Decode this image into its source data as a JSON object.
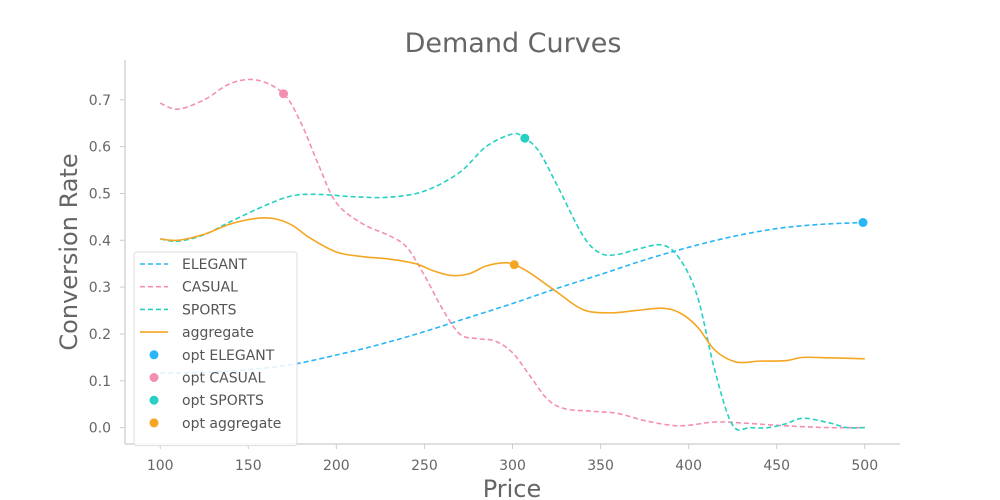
{
  "chart_data": {
    "type": "line",
    "title": "Demand Curves",
    "xlabel": "Price",
    "ylabel": "Conversion Rate",
    "xlim": [
      80,
      520
    ],
    "ylim": [
      -0.035,
      0.785
    ],
    "xticks": [
      100,
      150,
      200,
      250,
      300,
      350,
      400,
      450,
      500
    ],
    "yticks": [
      0.0,
      0.1,
      0.2,
      0.3,
      0.4,
      0.5,
      0.6,
      0.7
    ],
    "xtick_labels": [
      "100",
      "150",
      "200",
      "250",
      "300",
      "350",
      "400",
      "450",
      "500"
    ],
    "ytick_labels": [
      "0.0",
      "0.1",
      "0.2",
      "0.3",
      "0.4",
      "0.5",
      "0.6",
      "0.7"
    ],
    "grid": false,
    "legend": "lower-left",
    "series": [
      {
        "name": "ELEGANT",
        "color": "#29b6f6",
        "style": "dashed",
        "x": [
          100,
          125,
          150,
          175,
          200,
          225,
          250,
          275,
          300,
          325,
          350,
          375,
          400,
          425,
          450,
          475,
          500
        ],
        "y": [
          0.116,
          0.118,
          0.124,
          0.135,
          0.155,
          0.178,
          0.205,
          0.235,
          0.265,
          0.297,
          0.327,
          0.358,
          0.385,
          0.408,
          0.425,
          0.434,
          0.438
        ]
      },
      {
        "name": "CASUAL",
        "color": "#f48fb1",
        "style": "dashed",
        "x": [
          100,
          110,
          125,
          140,
          155,
          170,
          180,
          190,
          200,
          215,
          230,
          240,
          250,
          260,
          270,
          280,
          290,
          300,
          310,
          320,
          330,
          345,
          360,
          375,
          390,
          400,
          415,
          430,
          450,
          465,
          480,
          500
        ],
        "y": [
          0.693,
          0.68,
          0.7,
          0.735,
          0.742,
          0.713,
          0.65,
          0.56,
          0.48,
          0.435,
          0.41,
          0.385,
          0.325,
          0.255,
          0.2,
          0.19,
          0.185,
          0.16,
          0.11,
          0.06,
          0.04,
          0.035,
          0.03,
          0.015,
          0.005,
          0.005,
          0.012,
          0.01,
          0.005,
          0.002,
          0.0,
          0.0
        ]
      },
      {
        "name": "SPORTS",
        "color": "#26d0c2",
        "style": "dashed",
        "x": [
          100,
          110,
          125,
          140,
          160,
          175,
          190,
          210,
          230,
          250,
          270,
          285,
          300,
          307,
          315,
          325,
          340,
          350,
          360,
          370,
          385,
          395,
          405,
          415,
          425,
          435,
          445,
          455,
          465,
          480,
          490,
          500
        ],
        "y": [
          0.403,
          0.398,
          0.412,
          0.44,
          0.475,
          0.495,
          0.498,
          0.493,
          0.492,
          0.505,
          0.545,
          0.6,
          0.627,
          0.618,
          0.59,
          0.52,
          0.41,
          0.372,
          0.37,
          0.38,
          0.39,
          0.36,
          0.28,
          0.12,
          0.005,
          0.0,
          0.0,
          0.008,
          0.02,
          0.01,
          0.0,
          0.0
        ]
      },
      {
        "name": "aggregate",
        "color": "#f5a623",
        "style": "solid",
        "x": [
          100,
          110,
          125,
          140,
          155,
          165,
          175,
          185,
          200,
          215,
          230,
          245,
          255,
          265,
          275,
          285,
          295,
          301,
          310,
          325,
          340,
          355,
          370,
          385,
          395,
          405,
          415,
          427,
          440,
          455,
          465,
          480,
          500
        ],
        "y": [
          0.403,
          0.4,
          0.413,
          0.435,
          0.447,
          0.446,
          0.432,
          0.405,
          0.375,
          0.365,
          0.36,
          0.35,
          0.335,
          0.325,
          0.328,
          0.345,
          0.352,
          0.348,
          0.33,
          0.29,
          0.252,
          0.245,
          0.25,
          0.255,
          0.245,
          0.215,
          0.165,
          0.14,
          0.142,
          0.143,
          0.15,
          0.149,
          0.147
        ]
      }
    ],
    "optima": [
      {
        "name": "opt ELEGANT",
        "color": "#29b6f6",
        "x": 499,
        "y": 0.438
      },
      {
        "name": "opt CASUAL",
        "color": "#f48fb1",
        "x": 170,
        "y": 0.713
      },
      {
        "name": "opt SPORTS",
        "color": "#26d0c2",
        "x": 307,
        "y": 0.618
      },
      {
        "name": "opt aggregate",
        "color": "#f5a623",
        "x": 301,
        "y": 0.348
      }
    ]
  }
}
